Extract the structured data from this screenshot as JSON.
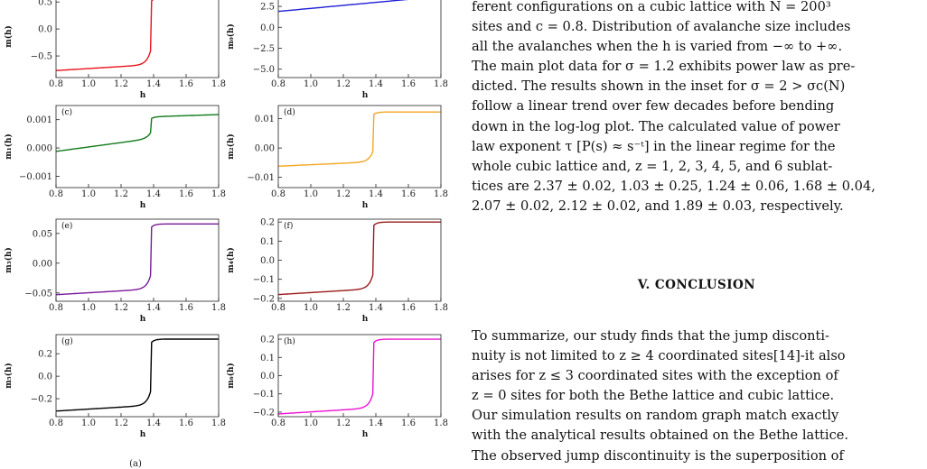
{
  "figure": {
    "x_axis_label": "h",
    "bottom_caption_fragment": "(a)",
    "panels": [
      {
        "id": "a",
        "label": "",
        "ylabel": "m(h)",
        "yticks": [
          "0.5",
          "0.0",
          "−0.5"
        ],
        "ytick_vals": [
          0.5,
          0.0,
          -0.5
        ],
        "ylim": [
          -0.9,
          0.62
        ],
        "color": "#e8141c",
        "lo": -0.77,
        "hi": 0.58,
        "shape": "jump"
      },
      {
        "id": "b",
        "label": "",
        "ylabel": "m₀(h)",
        "yticks": [
          "2.5",
          "0.0",
          "−2.5",
          "−5.0"
        ],
        "ytick_vals": [
          2.5,
          0.0,
          -2.5,
          -5.0
        ],
        "ylim": [
          -6.0,
          3.8
        ],
        "color": "#1f1fd6",
        "lo": 1.9,
        "hi": 3.7,
        "shape": "linear"
      },
      {
        "id": "c",
        "label": "(c)",
        "ylabel": "m₁(h)",
        "yticks": [
          "0.001",
          "0.000",
          "−0.001"
        ],
        "ytick_vals": [
          0.001,
          0.0,
          -0.001
        ],
        "ylim": [
          -0.0014,
          0.0015
        ],
        "color": "#0f7a1a",
        "lo": -0.00012,
        "hi": 0.00118,
        "shape": "step"
      },
      {
        "id": "d",
        "label": "(d)",
        "ylabel": "m₂(h)",
        "yticks": [
          "0.01",
          "0.00",
          "−0.01"
        ],
        "ytick_vals": [
          0.01,
          0.0,
          -0.01
        ],
        "ylim": [
          -0.0135,
          0.0145
        ],
        "color": "#f5a623",
        "lo": -0.0062,
        "hi": 0.0123,
        "shape": "jump"
      },
      {
        "id": "e",
        "label": "(e)",
        "ylabel": "m₃(h)",
        "yticks": [
          "0.05",
          "0.00",
          "−0.05"
        ],
        "ytick_vals": [
          0.05,
          0.0,
          -0.05
        ],
        "ylim": [
          -0.064,
          0.074
        ],
        "color": "#7a1a9a",
        "lo": -0.053,
        "hi": 0.066,
        "shape": "jump"
      },
      {
        "id": "f",
        "label": "(f)",
        "ylabel": "m₄(h)",
        "yticks": [
          "0.2",
          "0.1",
          "0.0",
          "−0.1",
          "−0.2"
        ],
        "ytick_vals": [
          0.2,
          0.1,
          0.0,
          -0.1,
          -0.2
        ],
        "ylim": [
          -0.215,
          0.215
        ],
        "color": "#9b1b1b",
        "lo": -0.18,
        "hi": 0.2,
        "shape": "jump"
      },
      {
        "id": "g",
        "label": "(g)",
        "ylabel": "m₅(h)",
        "yticks": [
          "0.2",
          "0.0",
          "−0.2"
        ],
        "ytick_vals": [
          0.2,
          0.0,
          -0.2
        ],
        "ylim": [
          -0.36,
          0.37
        ],
        "color": "#000000",
        "lo": -0.31,
        "hi": 0.33,
        "shape": "jump"
      },
      {
        "id": "h",
        "label": "(h)",
        "ylabel": "m₆(h)",
        "yticks": [
          "0.2",
          "0.1",
          "0.0",
          "−0.1",
          "−0.2"
        ],
        "ytick_vals": [
          0.2,
          0.1,
          0.0,
          -0.1,
          -0.2
        ],
        "ylim": [
          -0.225,
          0.225
        ],
        "color": "#ee10d4",
        "lo": -0.21,
        "hi": 0.2,
        "shape": "jump"
      }
    ],
    "xticks": [
      "0.8",
      "1.0",
      "1.2",
      "1.4",
      "1.6",
      "1.8"
    ],
    "xtick_vals": [
      0.8,
      1.0,
      1.2,
      1.4,
      1.6,
      1.8
    ],
    "xlim": [
      0.8,
      1.8
    ]
  },
  "text": {
    "paragraph1_lines": [
      "ferent configurations on a cubic lattice with N = 200³",
      "sites and c = 0.8. Distribution of avalanche size includes",
      "all the avalanches when the h is varied from −∞ to +∞.",
      "The main plot data for σ = 1.2 exhibits power law as pre-",
      "dicted. The results shown in the inset for σ = 2 > σc(N)",
      "follow a linear trend over few decades before bending",
      "down in the log-log plot. The calculated value of power",
      "law exponent τ [P(s) ≈ s⁻ᵗ] in the linear regime for the",
      "whole cubic lattice and, z = 1, 2, 3, 4, 5, and 6 sublat-",
      "tices are 2.37 ± 0.02, 1.03 ± 0.25, 1.24 ± 0.06, 1.68 ± 0.04,",
      "2.07 ± 0.02, 2.12 ± 0.02, and 1.89 ± 0.03, respectively."
    ],
    "section_heading": "V.   CONCLUSION",
    "paragraph2_lines": [
      "   To summarize, our study finds that the jump disconti-",
      "nuity is not limited to z ≥ 4 coordinated sites[14]-it also",
      "arises for z ≤ 3 coordinated sites with the exception of",
      "z = 0 sites for both the Bethe lattice and cubic lattice.",
      "Our simulation results on random graph match exactly",
      "with the analytical results obtained on the Bethe lattice.",
      "The observed jump discontinuity is the superposition of"
    ]
  }
}
